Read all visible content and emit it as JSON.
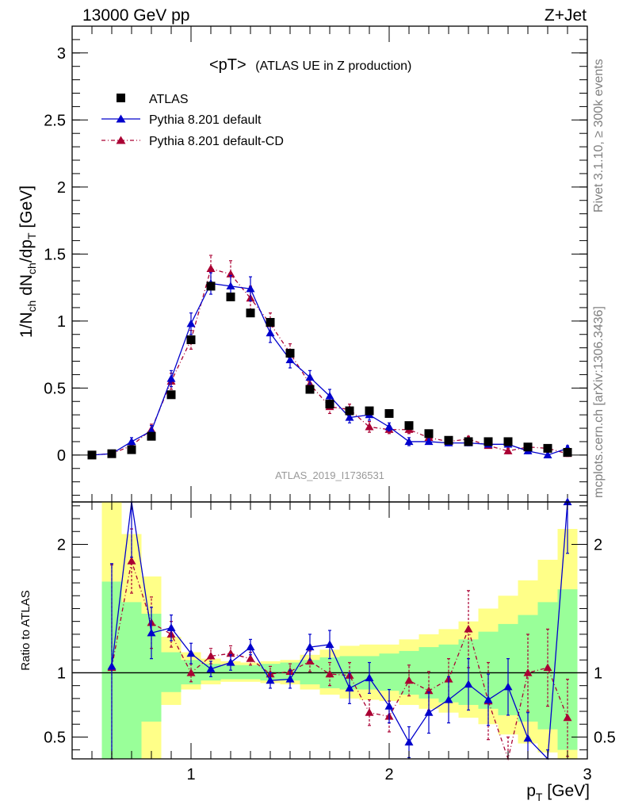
{
  "header": {
    "left": "13000 GeV pp",
    "right": "Z+Jet"
  },
  "side_labels": {
    "top": "Rivet 3.1.10, ≥ 300k events",
    "bottom": "mcplots.cern.ch [arXiv:1306.3436]"
  },
  "watermark": "ATLAS_2019_I1736531",
  "colors": {
    "atlas": "#000000",
    "default": "#0000cc",
    "cd": "#aa0033",
    "band_green": "#99ff99",
    "band_yellow": "#ffff88"
  },
  "chart_data": [
    {
      "type": "scatter",
      "title": "<pT>",
      "subtitle": "(ATLAS UE in Z production)",
      "xlabel": "p_T [GeV]",
      "ylabel": "1/N_ch dN_ch/dp_T [GeV]",
      "xlim": [
        0.4,
        3.0
      ],
      "ylim": [
        -0.35,
        3.2
      ],
      "yticks": [
        "0",
        "0.5",
        "1",
        "1.5",
        "2",
        "2.5",
        "3"
      ],
      "xticks": [
        "1",
        "2",
        "3"
      ],
      "legend_position": "top-left",
      "series": [
        {
          "name": "ATLAS",
          "marker": "square",
          "x": [
            0.5,
            0.6,
            0.7,
            0.8,
            0.9,
            1.0,
            1.1,
            1.2,
            1.3,
            1.4,
            1.5,
            1.6,
            1.7,
            1.8,
            1.9,
            2.0,
            2.1,
            2.2,
            2.3,
            2.4,
            2.5,
            2.6,
            2.7,
            2.8,
            2.9
          ],
          "y": [
            0.0,
            0.01,
            0.04,
            0.14,
            0.45,
            0.86,
            1.26,
            1.18,
            1.06,
            0.99,
            0.76,
            0.49,
            0.38,
            0.33,
            0.33,
            0.31,
            0.22,
            0.16,
            0.11,
            0.1,
            0.1,
            0.1,
            0.06,
            0.05,
            0.02
          ]
        },
        {
          "name": "Pythia 8.201 default",
          "marker": "triangle",
          "x": [
            0.5,
            0.6,
            0.7,
            0.8,
            0.9,
            1.0,
            1.1,
            1.2,
            1.3,
            1.4,
            1.5,
            1.6,
            1.7,
            1.8,
            1.9,
            2.0,
            2.1,
            2.2,
            2.3,
            2.4,
            2.5,
            2.6,
            2.7,
            2.8,
            2.9
          ],
          "y": [
            0.0,
            0.01,
            0.1,
            0.18,
            0.57,
            0.98,
            1.28,
            1.26,
            1.24,
            0.91,
            0.71,
            0.58,
            0.44,
            0.28,
            0.3,
            0.21,
            0.1,
            0.1,
            0.09,
            0.09,
            0.08,
            0.08,
            0.03,
            0.0,
            0.05
          ],
          "err": [
            0.01,
            0.01,
            0.03,
            0.04,
            0.06,
            0.08,
            0.08,
            0.08,
            0.09,
            0.07,
            0.06,
            0.05,
            0.05,
            0.04,
            0.04,
            0.03,
            0.03,
            0.02,
            0.02,
            0.02,
            0.02,
            0.02,
            0.02,
            0.02,
            0.02
          ]
        },
        {
          "name": "Pythia 8.201 default-CD",
          "marker": "triangle",
          "dashed": true,
          "x": [
            0.5,
            0.6,
            0.7,
            0.8,
            0.9,
            1.0,
            1.1,
            1.2,
            1.3,
            1.4,
            1.5,
            1.6,
            1.7,
            1.8,
            1.9,
            2.0,
            2.1,
            2.2,
            2.3,
            2.4,
            2.5,
            2.6,
            2.7,
            2.8,
            2.9
          ],
          "y": [
            0.0,
            0.01,
            0.07,
            0.19,
            0.55,
            0.86,
            1.39,
            1.35,
            1.17,
            0.98,
            0.76,
            0.53,
            0.36,
            0.34,
            0.21,
            0.19,
            0.19,
            0.13,
            0.1,
            0.12,
            0.07,
            0.03,
            0.06,
            0.05,
            0.01
          ],
          "err": [
            0.01,
            0.01,
            0.03,
            0.04,
            0.06,
            0.07,
            0.1,
            0.1,
            0.09,
            0.08,
            0.07,
            0.06,
            0.05,
            0.04,
            0.04,
            0.03,
            0.03,
            0.02,
            0.02,
            0.02,
            0.02,
            0.02,
            0.02,
            0.02,
            0.02
          ]
        }
      ]
    },
    {
      "type": "line",
      "ylabel": "Ratio to ATLAS",
      "xlim": [
        0.4,
        3.0
      ],
      "ylim": [
        0.33,
        2.33
      ],
      "yticks": [
        "0.5",
        "1",
        "2"
      ],
      "reference": 1,
      "bands": {
        "x_edges": [
          0.55,
          0.65,
          0.75,
          0.85,
          0.95,
          1.05,
          1.15,
          1.25,
          1.35,
          1.45,
          1.55,
          1.65,
          1.75,
          1.85,
          1.95,
          2.05,
          2.15,
          2.25,
          2.35,
          2.45,
          2.55,
          2.65,
          2.75,
          2.85,
          2.95
        ],
        "yellow_low": [
          0.33,
          0.33,
          0.33,
          0.75,
          0.87,
          0.91,
          0.93,
          0.93,
          0.92,
          0.91,
          0.87,
          0.83,
          0.8,
          0.79,
          0.78,
          0.75,
          0.72,
          0.69,
          0.65,
          0.6,
          0.52,
          0.45,
          0.38,
          0.33
        ],
        "yellow_high": [
          2.33,
          2.08,
          1.75,
          1.28,
          1.16,
          1.11,
          1.09,
          1.08,
          1.09,
          1.1,
          1.14,
          1.18,
          1.21,
          1.22,
          1.22,
          1.26,
          1.3,
          1.34,
          1.4,
          1.5,
          1.6,
          1.72,
          1.88,
          2.12
        ],
        "green_low": [
          0.33,
          0.33,
          0.62,
          0.85,
          0.91,
          0.94,
          0.95,
          0.95,
          0.94,
          0.94,
          0.91,
          0.88,
          0.87,
          0.87,
          0.86,
          0.83,
          0.8,
          0.77,
          0.75,
          0.72,
          0.67,
          0.62,
          0.56,
          0.4
        ],
        "green_high": [
          1.71,
          1.55,
          1.46,
          1.16,
          1.1,
          1.07,
          1.06,
          1.06,
          1.07,
          1.08,
          1.1,
          1.12,
          1.13,
          1.13,
          1.15,
          1.17,
          1.2,
          1.22,
          1.26,
          1.32,
          1.38,
          1.45,
          1.55,
          1.65
        ]
      },
      "series": [
        {
          "name": "Pythia 8.201 default",
          "x": [
            0.6,
            0.7,
            0.8,
            0.9,
            1.0,
            1.1,
            1.2,
            1.3,
            1.4,
            1.5,
            1.6,
            1.7,
            1.8,
            1.9,
            2.0,
            2.1,
            2.2,
            2.3,
            2.4,
            2.5,
            2.6,
            2.7,
            2.8,
            2.9
          ],
          "y": [
            1.05,
            2.5,
            1.31,
            1.35,
            1.15,
            1.03,
            1.08,
            1.2,
            0.94,
            0.95,
            1.2,
            1.22,
            0.88,
            0.96,
            0.74,
            0.46,
            0.69,
            0.79,
            0.91,
            0.79,
            0.89,
            0.49,
            0.1,
            2.33
          ],
          "err": [
            0.8,
            0.6,
            0.2,
            0.1,
            0.08,
            0.06,
            0.06,
            0.06,
            0.06,
            0.07,
            0.1,
            0.11,
            0.12,
            0.12,
            0.13,
            0.12,
            0.16,
            0.18,
            0.2,
            0.2,
            0.22,
            0.2,
            0.3,
            0.4
          ]
        },
        {
          "name": "Pythia 8.201 default-CD",
          "x": [
            0.6,
            0.7,
            0.8,
            0.9,
            1.0,
            1.1,
            1.2,
            1.3,
            1.4,
            1.5,
            1.6,
            1.7,
            1.8,
            1.9,
            2.0,
            2.1,
            2.2,
            2.3,
            2.4,
            2.5,
            2.6,
            2.7,
            2.8,
            2.9
          ],
          "y": [
            1.04,
            1.87,
            1.39,
            1.3,
            1.0,
            1.13,
            1.15,
            1.11,
            0.99,
            1.01,
            1.09,
            0.99,
            0.98,
            0.69,
            0.66,
            0.94,
            0.86,
            0.95,
            1.34,
            0.78,
            0.2,
            1.0,
            1.04,
            0.65
          ],
          "err": [
            0.8,
            0.25,
            0.2,
            0.1,
            0.07,
            0.06,
            0.06,
            0.05,
            0.06,
            0.06,
            0.08,
            0.09,
            0.1,
            0.1,
            0.12,
            0.12,
            0.15,
            0.16,
            0.3,
            0.3,
            0.3,
            0.3,
            0.3,
            0.3
          ]
        }
      ]
    }
  ]
}
